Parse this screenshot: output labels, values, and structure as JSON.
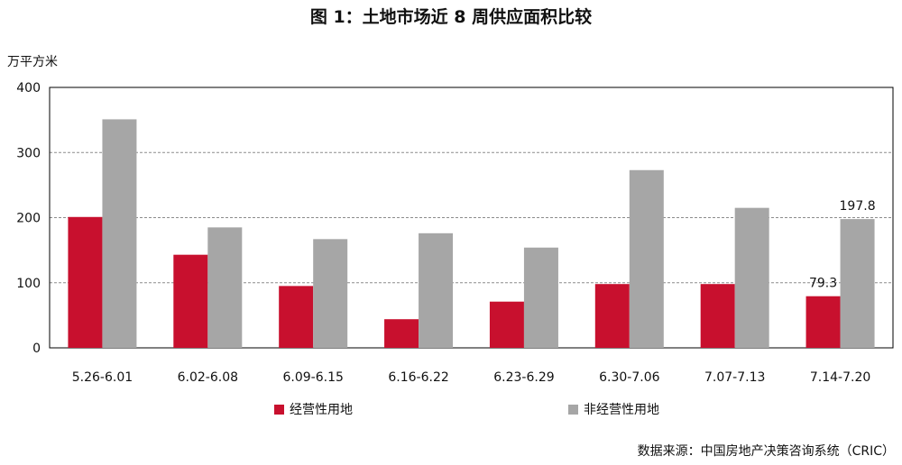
{
  "title": "图 1：土地市场近 8 周供应面积比较",
  "source": "数据来源：中国房地产决策咨询系统（CRIC）",
  "chart_data": {
    "type": "bar",
    "title": "图 1：土地市场近 8 周供应面积比较",
    "ylabel": "万平方米",
    "xlabel": "",
    "ylim": [
      0,
      400
    ],
    "yticks": [
      0,
      100,
      200,
      300,
      400
    ],
    "grid": true,
    "legend_position": "bottom",
    "categories": [
      "5.26-6.01",
      "6.02-6.08",
      "6.09-6.15",
      "6.16-6.22",
      "6.23-6.29",
      "6.30-7.06",
      "7.07-7.13",
      "7.14-7.20"
    ],
    "series": [
      {
        "name": "经营性用地",
        "color": "#c8102e",
        "values": [
          201,
          143,
          95,
          44,
          71,
          98,
          98,
          79.3
        ]
      },
      {
        "name": "非经营性用地",
        "color": "#a6a6a6",
        "values": [
          351,
          185,
          167,
          176,
          154,
          273,
          215,
          197.8
        ]
      }
    ],
    "data_labels": [
      {
        "series": 0,
        "index": 7,
        "text": "79.3"
      },
      {
        "series": 1,
        "index": 7,
        "text": "197.8"
      }
    ]
  }
}
